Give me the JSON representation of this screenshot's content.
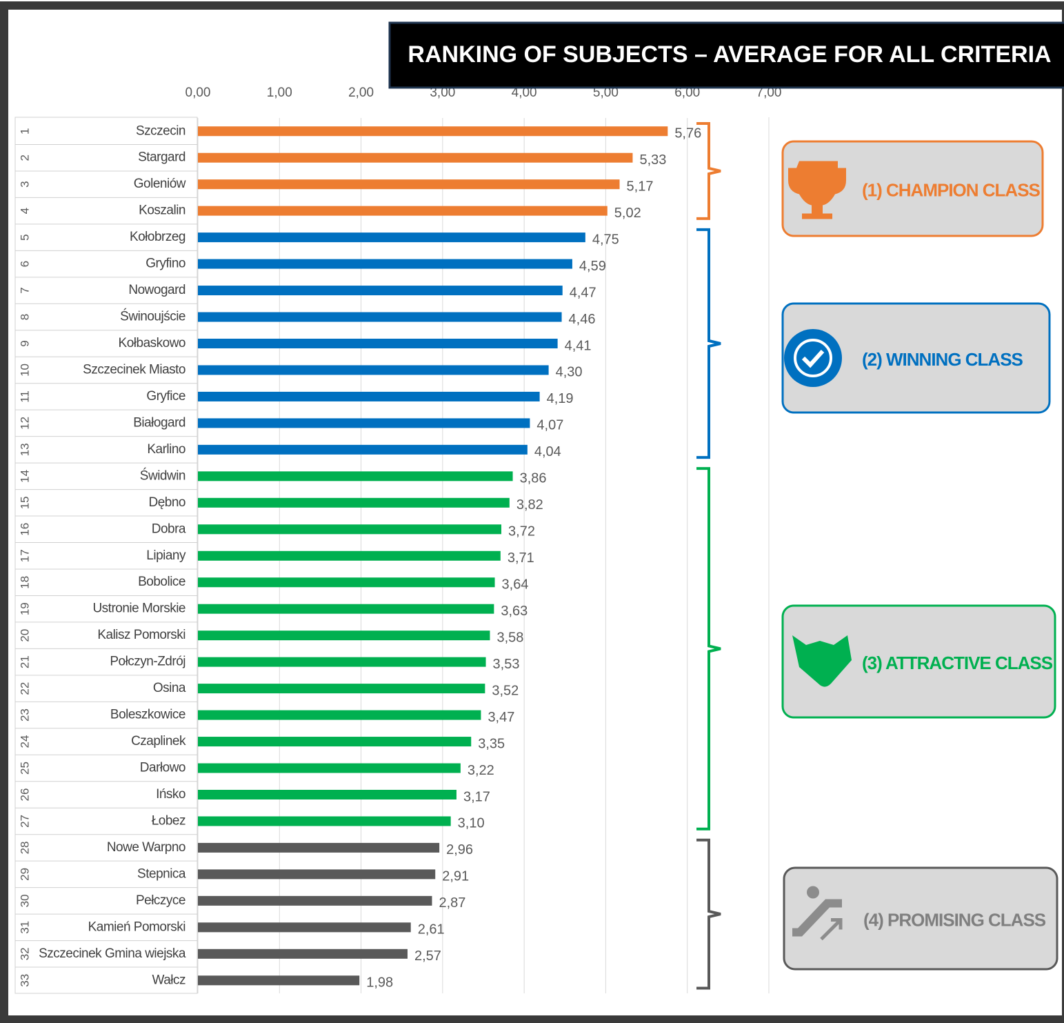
{
  "chart_data": {
    "type": "barh",
    "title": "RANKING OF SUBJECTS – AVERAGE FOR ALL CRITERIA",
    "ranks": [
      1,
      2,
      3,
      4,
      5,
      6,
      7,
      8,
      9,
      10,
      11,
      12,
      13,
      14,
      15,
      16,
      17,
      18,
      19,
      20,
      21,
      22,
      23,
      24,
      25,
      26,
      27,
      28,
      29,
      30,
      31,
      32,
      33
    ],
    "categories": [
      "Szczecin",
      "Stargard",
      "Goleniów",
      "Koszalin",
      "Kołobrzeg",
      "Gryfino",
      "Nowogard",
      "Świnoujście",
      "Kołbaskowo",
      "Szczecinek Miasto",
      "Gryfice",
      "Białogard",
      "Karlino",
      "Świdwin",
      "Dębno",
      "Dobra",
      "Lipiany",
      "Bobolice",
      "Ustronie Morskie",
      "Kalisz Pomorski",
      "Połczyn-Zdrój",
      "Osina",
      "Boleszkowice",
      "Czaplinek",
      "Darłowo",
      "Ińsko",
      "Łobez",
      "Nowe Warpno",
      "Stepnica",
      "Pełczyce",
      "Kamień Pomorski",
      "Szczecinek Gmina wiejska",
      "Wałcz"
    ],
    "values": [
      5.76,
      5.33,
      5.17,
      5.02,
      4.75,
      4.59,
      4.47,
      4.46,
      4.41,
      4.3,
      4.19,
      4.07,
      4.04,
      3.86,
      3.82,
      3.72,
      3.71,
      3.64,
      3.63,
      3.58,
      3.53,
      3.52,
      3.47,
      3.35,
      3.22,
      3.17,
      3.1,
      2.96,
      2.91,
      2.87,
      2.61,
      2.57,
      1.98
    ],
    "value_labels": [
      "5,76",
      "5,33",
      "5,17",
      "5,02",
      "4,75",
      "4,59",
      "4,47",
      "4,46",
      "4,41",
      "4,30",
      "4,19",
      "4,07",
      "4,04",
      "3,86",
      "3,82",
      "3,72",
      "3,71",
      "3,64",
      "3,63",
      "3,58",
      "3,53",
      "3,52",
      "3,47",
      "3,35",
      "3,22",
      "3,17",
      "3,10",
      "2,96",
      "2,91",
      "2,87",
      "2,61",
      "2,57",
      "1,98"
    ],
    "colors": [
      "#ed7d31",
      "#ed7d31",
      "#ed7d31",
      "#ed7d31",
      "#0070c0",
      "#0070c0",
      "#0070c0",
      "#0070c0",
      "#0070c0",
      "#0070c0",
      "#0070c0",
      "#0070c0",
      "#0070c0",
      "#00b050",
      "#00b050",
      "#00b050",
      "#00b050",
      "#00b050",
      "#00b050",
      "#00b050",
      "#00b050",
      "#00b050",
      "#00b050",
      "#00b050",
      "#00b050",
      "#00b050",
      "#00b050",
      "#595959",
      "#595959",
      "#595959",
      "#595959",
      "#595959",
      "#595959"
    ],
    "xlim": [
      0,
      7
    ],
    "xticks": [
      {
        "value": 0,
        "label": "0,00"
      },
      {
        "value": 1,
        "label": "1,00"
      },
      {
        "value": 2,
        "label": "2,00"
      },
      {
        "value": 3,
        "label": "3,00"
      },
      {
        "value": 4,
        "label": "4,00"
      },
      {
        "value": 5,
        "label": "5,00"
      },
      {
        "value": 6,
        "label": "6,00"
      },
      {
        "value": 7,
        "label": "7,00"
      }
    ],
    "grid": true,
    "classes": [
      {
        "name": "(1) CHAMPION CLASS",
        "color": "#ed7d31"
      },
      {
        "name": "(2) WINNING CLASS",
        "color": "#0070c0"
      },
      {
        "name": "(3) ATTRACTIVE CLASS",
        "color": "#00b050"
      },
      {
        "name": "(4) PROMISING CLASS",
        "color": "#595959"
      }
    ]
  }
}
